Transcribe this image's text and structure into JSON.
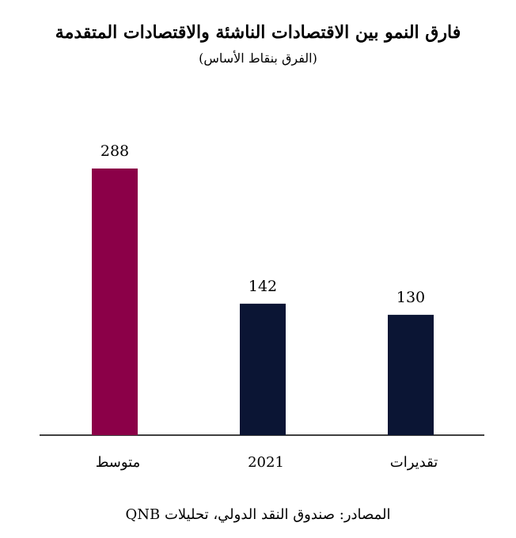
{
  "chart_data": {
    "type": "bar",
    "title": "فارق النمو بين الاقتصادات الناشئة والاقتصادات المتقدمة",
    "subtitle": "(الفرق بنقاط الأساس)",
    "categories": [
      "متوسط",
      "2021",
      "تقديرات"
    ],
    "values": [
      288,
      142,
      130
    ],
    "value_labels": [
      "288",
      "142",
      "130"
    ],
    "colors": [
      "#8b0048",
      "#0b1534",
      "#0b1534"
    ],
    "ylim": [
      0,
      300
    ],
    "grid": false,
    "legend": "none"
  },
  "source": "المصادر: صندوق النقد الدولي، تحليلات QNB"
}
